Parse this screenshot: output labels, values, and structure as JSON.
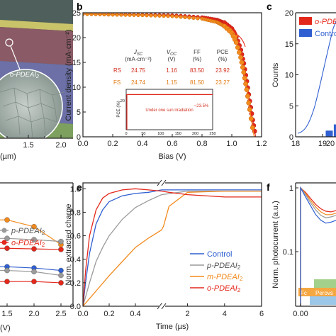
{
  "panel_labels": [
    "b",
    "c",
    "e",
    "f"
  ],
  "legend_names": {
    "o": "o-PDEAI",
    "p": "p-PDEAI",
    "m": "m-PDEAI",
    "sub": "2",
    "control": "Control",
    "control_trunc": "Contro"
  },
  "colors": {
    "red": "#e3281b",
    "orange": "#f28a1c",
    "gray": "#9a9a9a",
    "blue": "#2f5fd0",
    "sem_bg": "#6e8c86"
  },
  "panel_a": {
    "inset_label": "o-PDEAI",
    "inset_sub": "2",
    "x_ticks": [
      "1.5",
      "2.0"
    ],
    "x_label": "(µm)"
  },
  "panel_d": {
    "legend": [
      {
        "key": "p",
        "label": "p-PDEAI",
        "sub": "2"
      },
      {
        "key": "o",
        "label": "o-PDEAI",
        "sub": "2"
      }
    ],
    "x_ticks": [
      "1.5",
      "2.0",
      "2.5"
    ],
    "x_label": "(V)",
    "series": [
      {
        "name": "orange",
        "x": [
          1.5,
          2.0,
          2.5
        ],
        "y": [
          0.3,
          0.355,
          0.5
        ]
      },
      {
        "name": "p-PDEAI2",
        "x": [
          1.5,
          2.0,
          2.5
        ],
        "y": [
          0.45,
          0.46,
          0.475
        ]
      },
      {
        "name": "o-PDEAI2",
        "x": [
          1.5,
          2.0,
          2.5
        ],
        "y": [
          0.53,
          0.535,
          0.54
        ]
      },
      {
        "name": "blue",
        "x": [
          1.5,
          2.0,
          2.5
        ],
        "y": [
          0.68,
          0.69,
          0.71
        ]
      },
      {
        "name": "gray",
        "x": [
          1.5,
          2.0,
          2.5
        ],
        "y": [
          0.71,
          0.72,
          0.75
        ]
      },
      {
        "name": "red",
        "x": [
          1.5,
          2.0,
          2.5
        ],
        "y": [
          0.8,
          0.8,
          0.81
        ]
      }
    ]
  },
  "chart_data": [
    {
      "panel": "b",
      "type": "line",
      "xlabel": "Bias (V)",
      "ylabel": "Current density (mA·cm⁻²)",
      "xlim": [
        0.0,
        1.2
      ],
      "ylim": [
        0,
        25
      ],
      "x_ticks": [
        0.0,
        0.2,
        0.4,
        0.6,
        0.8,
        1.0,
        1.2
      ],
      "y_ticks": [
        0,
        5,
        10,
        15,
        20,
        25
      ],
      "series": [
        {
          "name": "RS",
          "x": [
            0.0,
            0.2,
            0.4,
            0.6,
            0.8,
            0.9,
            0.95,
            1.0,
            1.03,
            1.06,
            1.08,
            1.1,
            1.12,
            1.14,
            1.16
          ],
          "y": [
            24.75,
            24.7,
            24.6,
            24.5,
            24.1,
            23.6,
            23.0,
            21.8,
            20.2,
            17.5,
            14.8,
            11.2,
            7.2,
            3.4,
            0.0
          ]
        },
        {
          "name": "FS",
          "x": [
            0.0,
            0.2,
            0.4,
            0.6,
            0.8,
            0.9,
            0.95,
            1.0,
            1.03,
            1.06,
            1.08,
            1.1,
            1.12,
            1.15
          ],
          "y": [
            24.74,
            24.6,
            24.5,
            24.3,
            23.8,
            23.1,
            22.3,
            20.9,
            19.0,
            16.0,
            13.0,
            9.5,
            5.5,
            0.0
          ]
        }
      ],
      "table": {
        "headers": [
          [
            "J",
            "SC",
            "(mA·cm⁻²)"
          ],
          [
            "V",
            "OC",
            "(V)"
          ],
          [
            "FF",
            "",
            "(%)"
          ],
          [
            "PCE",
            "",
            "(%)"
          ]
        ],
        "rows": [
          {
            "label": "RS",
            "values": [
              "24.75",
              "1.16",
              "83.50",
              "23.92"
            ]
          },
          {
            "label": "FS",
            "values": [
              "24.74",
              "1.15",
              "81.50",
              "23.27"
            ]
          }
        ]
      },
      "inset": {
        "ylabel": "PCE (%)",
        "x_ticks": [
          "0",
          "50",
          "100",
          "150",
          "200",
          "250"
        ],
        "y_tick": "20",
        "note": "Under one sun irradiation",
        "value_label": "~23.5%",
        "x": [
          0,
          250
        ],
        "y": [
          23.5,
          23.5
        ]
      }
    },
    {
      "panel": "c",
      "type": "bar",
      "ylabel": "Counts",
      "y_ticks": [
        "0",
        "5",
        "10",
        "15",
        "20"
      ],
      "x_ticks": [
        "18",
        "19",
        "20"
      ],
      "x_ticks_visible": [
        "18",
        "19",
        "20"
      ],
      "ylim": [
        0,
        20
      ],
      "legend": [
        {
          "key": "o",
          "label": "o-PDEA"
        },
        {
          "key": "control",
          "label": "Contro"
        }
      ],
      "bars": [
        {
          "series": "Control",
          "x": 19.25,
          "count": 1
        },
        {
          "series": "Control",
          "x": 19.55,
          "count": 2
        },
        {
          "series": "Control",
          "x": 19.85,
          "count": 5
        },
        {
          "series": "Control",
          "x": 20.15,
          "count": 4
        }
      ]
    },
    {
      "panel": "e",
      "type": "line",
      "xlabel": "Time (µs)",
      "ylabel": "Norm. extracted charge",
      "y_ticks": [
        "0.0",
        "0.2",
        "0.4",
        "0.6",
        "0.8",
        "1.0"
      ],
      "x_ticks_left": [
        "0.0",
        "0.2",
        "0.4",
        "0.6"
      ],
      "x_ticks_right": [
        "2",
        "4",
        "6"
      ],
      "ylim": [
        0,
        1.05
      ],
      "series": [
        {
          "name": "Control",
          "label_key": "control",
          "x": [
            0.0,
            0.02,
            0.05,
            0.1,
            0.15,
            0.2,
            0.3,
            0.4,
            0.5,
            0.6,
            2,
            4,
            6
          ],
          "y": [
            0.0,
            0.2,
            0.45,
            0.7,
            0.82,
            0.89,
            0.94,
            0.96,
            0.97,
            0.99,
            0.99,
            0.99,
            0.99
          ]
        },
        {
          "name": "p-PDEAI2",
          "label_key": "p",
          "x": [
            0.0,
            0.05,
            0.1,
            0.15,
            0.2,
            0.3,
            0.4,
            0.5,
            0.6,
            2,
            4,
            6
          ],
          "y": [
            0.0,
            0.2,
            0.38,
            0.5,
            0.6,
            0.74,
            0.84,
            0.9,
            0.95,
            0.98,
            0.98,
            0.98
          ]
        },
        {
          "name": "m-PDEAI2",
          "label_key": "m",
          "x": [
            0.0,
            0.1,
            0.2,
            0.3,
            0.4,
            0.5,
            0.6,
            0.7,
            1,
            2,
            4,
            6
          ],
          "y": [
            0.0,
            0.13,
            0.26,
            0.38,
            0.5,
            0.58,
            0.65,
            0.68,
            0.85,
            0.97,
            0.98,
            0.98
          ]
        },
        {
          "name": "o-PDEAI2",
          "label_key": "o",
          "x": [
            0.0,
            0.02,
            0.05,
            0.1,
            0.15,
            0.2,
            0.3,
            0.4,
            0.5,
            0.6,
            1,
            2,
            4,
            6
          ],
          "y": [
            0.0,
            0.3,
            0.6,
            0.82,
            0.92,
            0.96,
            0.99,
            1.0,
            0.99,
            0.98,
            0.97,
            0.95,
            0.93,
            0.93
          ]
        }
      ]
    },
    {
      "panel": "f",
      "type": "line",
      "ylabel": "Norm. photocurrent (a.u.)",
      "y_ticks": [
        "1",
        "0.1"
      ],
      "x_ticks": [
        "0.00"
      ],
      "band_texts": [
        "Fc",
        "Perovs"
      ],
      "series": [
        {
          "name": "o-PDEAI2",
          "color_key": "red",
          "x": [
            0.0,
            0.02,
            0.04,
            0.06,
            0.08,
            0.1,
            0.12,
            0.14
          ],
          "y": [
            1.0,
            0.85,
            0.68,
            0.55,
            0.47,
            0.43,
            0.42,
            0.44
          ]
        },
        {
          "name": "m-PDEAI2",
          "color_key": "orange",
          "x": [
            0.0,
            0.02,
            0.04,
            0.06,
            0.08,
            0.1,
            0.12,
            0.14
          ],
          "y": [
            1.0,
            0.82,
            0.63,
            0.5,
            0.42,
            0.38,
            0.38,
            0.4
          ]
        },
        {
          "name": "p-PDEAI2",
          "color_key": "gray",
          "x": [
            0.0,
            0.02,
            0.04,
            0.06,
            0.08,
            0.1,
            0.12,
            0.14
          ],
          "y": [
            1.0,
            0.78,
            0.58,
            0.45,
            0.37,
            0.34,
            0.35,
            0.37
          ]
        },
        {
          "name": "Control",
          "color_key": "blue",
          "x": [
            0.0,
            0.02,
            0.04,
            0.06,
            0.08,
            0.1,
            0.12,
            0.14
          ],
          "y": [
            1.0,
            0.72,
            0.52,
            0.38,
            0.31,
            0.28,
            0.29,
            0.31
          ]
        }
      ]
    }
  ]
}
